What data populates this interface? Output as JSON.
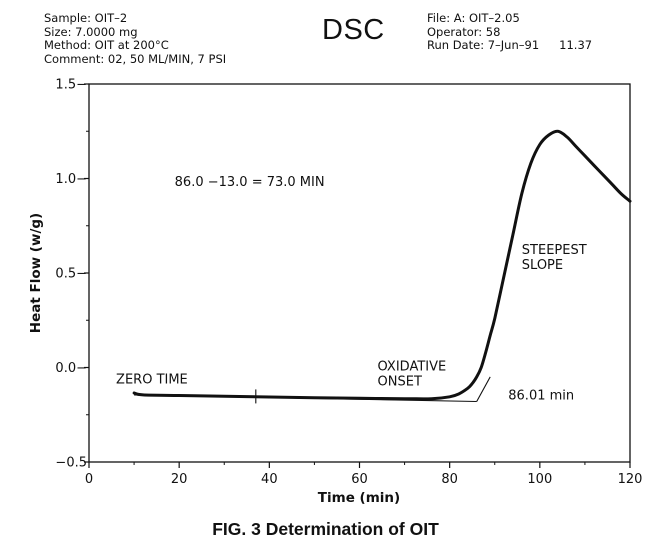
{
  "header": {
    "sample": "Sample: OIT–2",
    "size": "Size: 7.0000 mg",
    "method": "Method: OIT at 200°C",
    "comment": "Comment: 02, 50 ML/MIN, 7 PSI",
    "title": "DSC",
    "file": "File: A: OIT–2.05",
    "operator": "Operator: 58",
    "run_date": "Run Date: 7–Jun–91",
    "run_time": "11.37"
  },
  "caption": "FIG. 3 Determination of OIT",
  "chart_data": {
    "type": "line",
    "xlabel": "Time (min)",
    "ylabel": "Heat Flow (w/g)",
    "xlim": [
      0,
      120
    ],
    "ylim": [
      -0.5,
      1.5
    ],
    "xticks": [
      0,
      20,
      40,
      60,
      80,
      100,
      120
    ],
    "xtick_labels": [
      "0",
      "20",
      "40",
      "60",
      "80",
      "100",
      "120"
    ],
    "yticks": [
      -0.5,
      0.0,
      0.5,
      1.0,
      1.5
    ],
    "ytick_labels": [
      "−0.5",
      "0.0−",
      "0.5−",
      "1.0−",
      "1.5−"
    ],
    "grid": false,
    "series": [
      {
        "x": [
          10,
          12,
          20,
          30,
          40,
          50,
          60,
          70,
          76,
          80,
          82,
          84,
          85,
          86,
          87,
          88,
          89,
          90,
          92,
          94,
          96,
          98,
          100,
          102,
          104,
          106,
          108,
          110,
          112,
          114,
          116,
          118,
          120
        ],
        "values": [
          -0.135,
          -0.145,
          -0.148,
          -0.152,
          -0.156,
          -0.16,
          -0.163,
          -0.165,
          -0.165,
          -0.155,
          -0.14,
          -0.11,
          -0.085,
          -0.05,
          0.0,
          0.08,
          0.17,
          0.26,
          0.48,
          0.7,
          0.92,
          1.08,
          1.18,
          1.23,
          1.25,
          1.22,
          1.17,
          1.12,
          1.07,
          1.02,
          0.97,
          0.92,
          0.88
        ]
      }
    ],
    "construction_lines": [
      {
        "x": [
          10,
          86
        ],
        "y": [
          -0.145,
          -0.18
        ]
      },
      {
        "x": [
          86,
          89
        ],
        "y": [
          -0.18,
          -0.05
        ]
      }
    ],
    "marker_x": 37,
    "annotations": [
      {
        "text": "86.0 −13.0 = 73.0 MIN",
        "x": 19,
        "y": 0.96
      },
      {
        "text": "STEEPEST",
        "x": 96,
        "y": 0.6
      },
      {
        "text": "SLOPE",
        "x": 96,
        "y": 0.52
      },
      {
        "text": "ZERO TIME",
        "x": 6,
        "y": -0.085
      },
      {
        "text": "OXIDATIVE",
        "x": 64,
        "y": -0.015
      },
      {
        "text": "ONSET",
        "x": 64,
        "y": -0.095
      },
      {
        "text": "86.01 min",
        "x": 93,
        "y": -0.17
      }
    ]
  }
}
